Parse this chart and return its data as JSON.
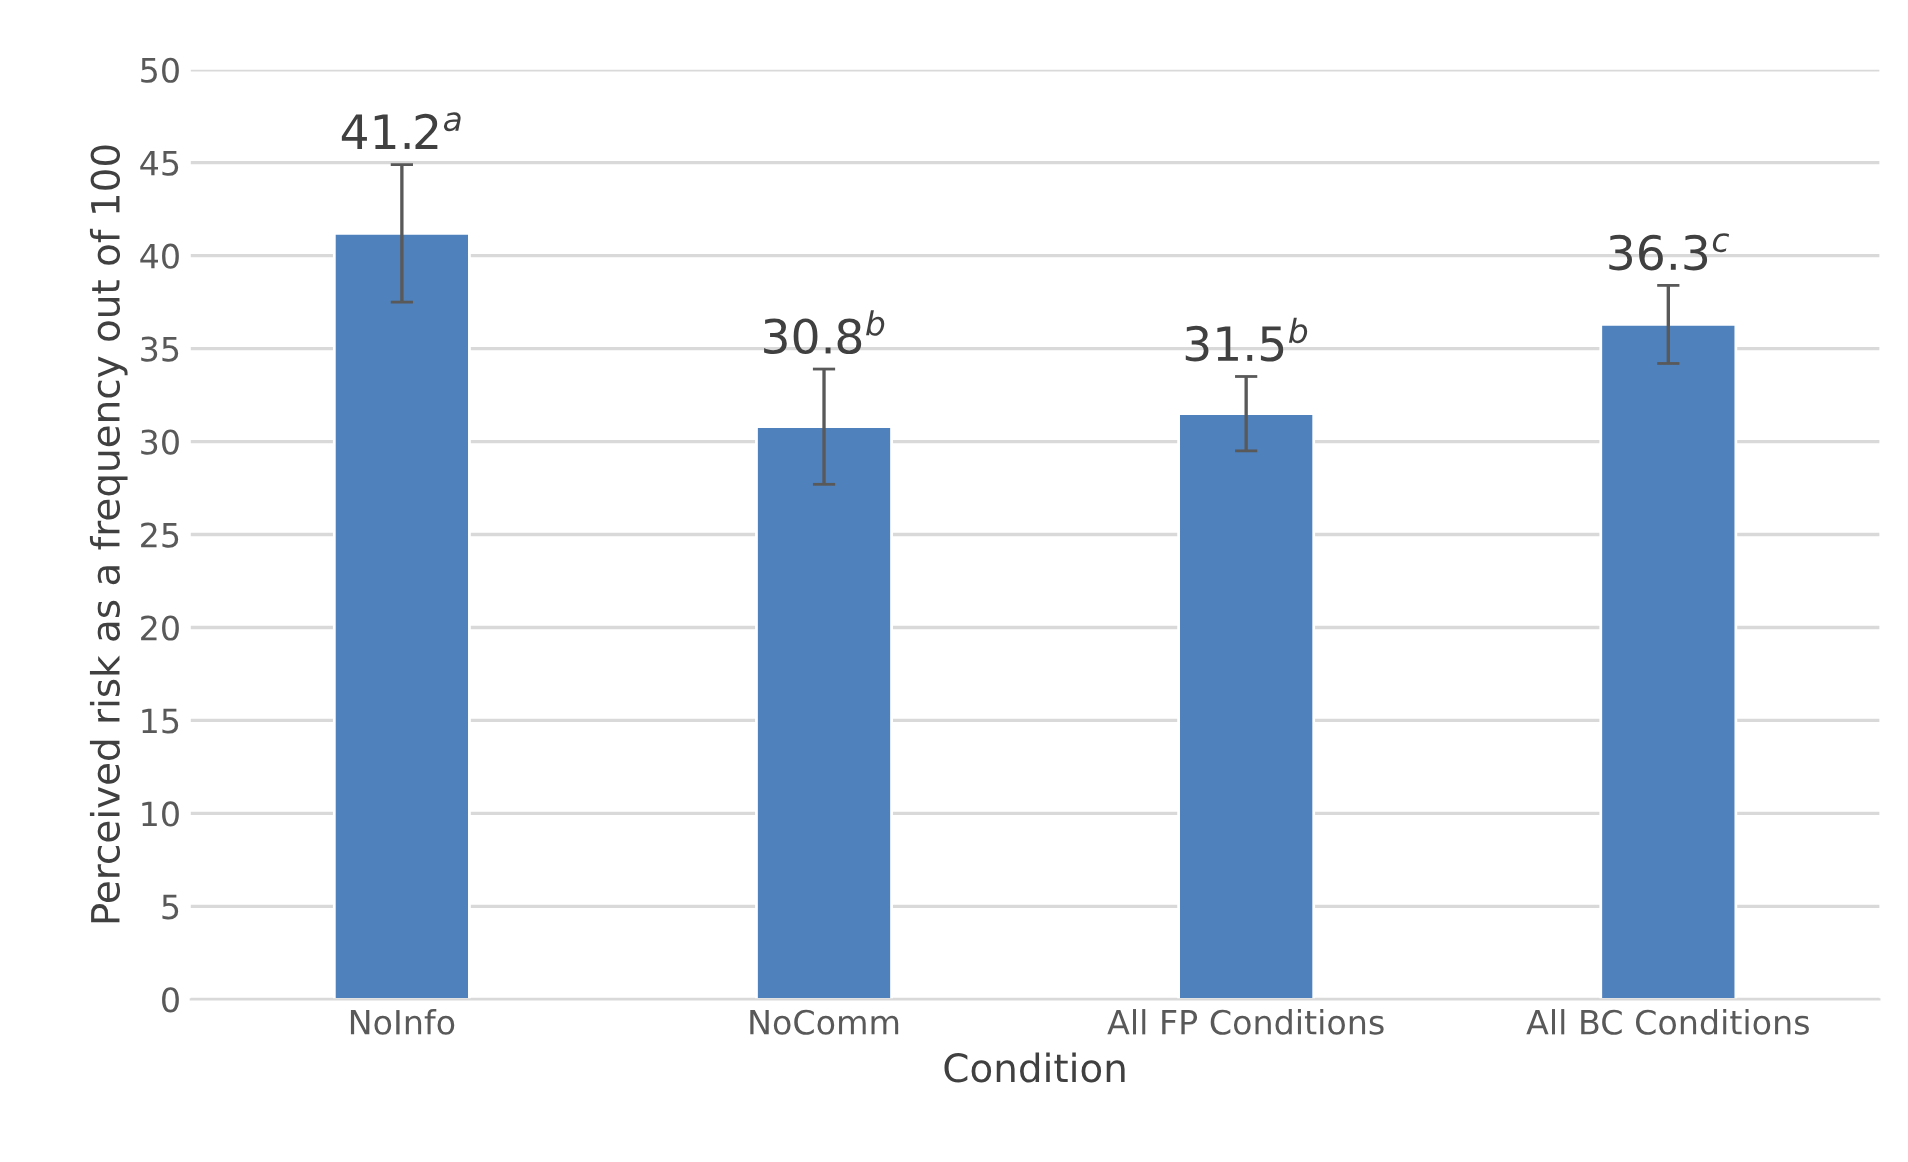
{
  "chart_data": {
    "type": "bar",
    "xlabel": "Condition",
    "ylabel": "Perceived risk as a frequency out of 100",
    "categories": [
      "NoInfo",
      "NoComm",
      "All FP Conditions",
      "All BC Conditions"
    ],
    "values": [
      41.2,
      30.8,
      31.5,
      36.3
    ],
    "errors": [
      3.7,
      3.1,
      2.0,
      2.1
    ],
    "value_labels": [
      "41.2$^{a}$",
      "30.8$^{b}$",
      "31.5$^{b}$",
      "36.3$^{c}$"
    ],
    "color": "#4f81bd",
    "ylim": [
      0,
      50
    ],
    "yticks": [
      0,
      5,
      10,
      15,
      20,
      25,
      30,
      35,
      40,
      45,
      50
    ],
    "grid": "y"
  }
}
